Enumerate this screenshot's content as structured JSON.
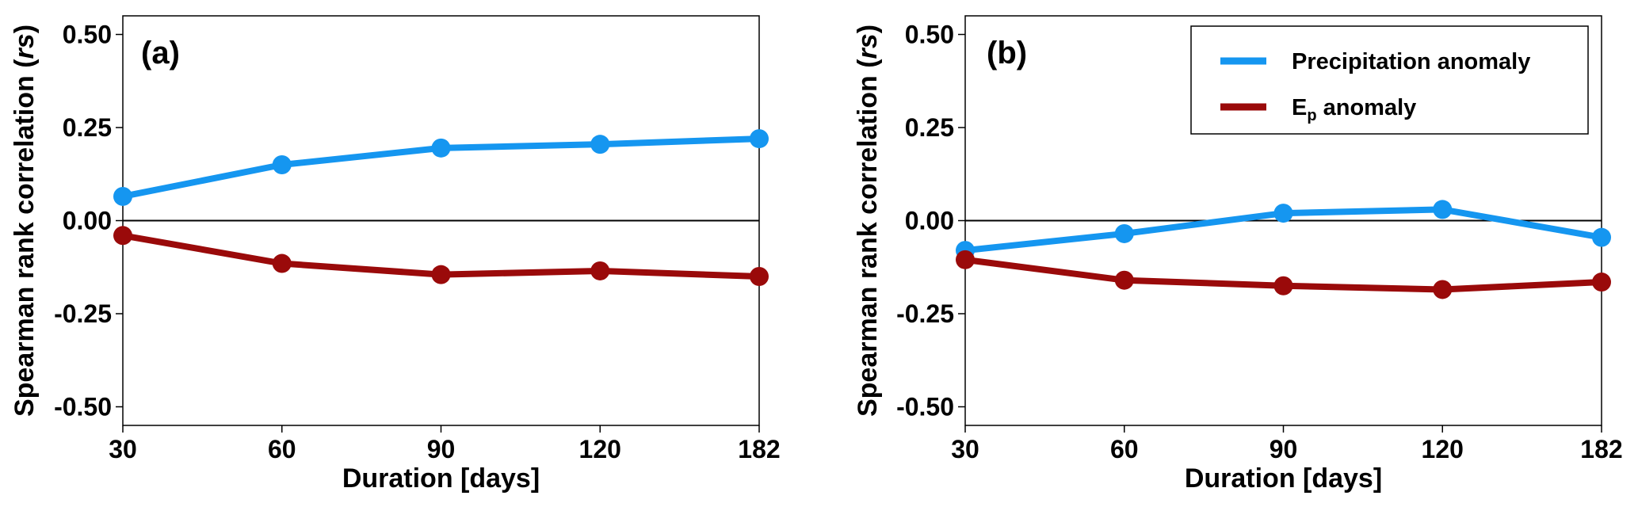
{
  "chart_data": [
    {
      "type": "line",
      "panel_label": "(a)",
      "x": [
        30,
        60,
        90,
        120,
        182
      ],
      "x_ticks": [
        "30",
        "60",
        "90",
        "120",
        "182"
      ],
      "xlabel": "Duration [days]",
      "ylabel_main": "Spearman rank correlation (",
      "ylabel_italic": "rs",
      "ylabel_end": ")",
      "ylim": [
        -0.55,
        0.55
      ],
      "y_ticks": [
        "0.50",
        "0.25",
        "0.00",
        "-0.25",
        "-0.50"
      ],
      "y_tick_values": [
        0.5,
        0.25,
        0.0,
        -0.25,
        -0.5
      ],
      "zero_line": true,
      "series": [
        {
          "color": "#1596F0",
          "values": [
            0.065,
            0.15,
            0.195,
            0.205,
            0.22
          ]
        },
        {
          "color": "#9A0A0A",
          "values": [
            -0.04,
            -0.115,
            -0.145,
            -0.135,
            -0.15
          ]
        }
      ]
    },
    {
      "type": "line",
      "panel_label": "(b)",
      "x": [
        30,
        60,
        90,
        120,
        182
      ],
      "x_ticks": [
        "30",
        "60",
        "90",
        "120",
        "182"
      ],
      "xlabel": "Duration [days]",
      "ylabel_main": "Spearman rank correlation (",
      "ylabel_italic": "rs",
      "ylabel_end": ")",
      "ylim": [
        -0.55,
        0.55
      ],
      "y_ticks": [
        "0.50",
        "0.25",
        "0.00",
        "-0.25",
        "-0.50"
      ],
      "y_tick_values": [
        0.5,
        0.25,
        0.0,
        -0.25,
        -0.5
      ],
      "zero_line": true,
      "legend": {
        "placement": "top-right",
        "entries": [
          {
            "label": "Precipitation anomaly",
            "color": "#1596F0"
          },
          {
            "label_main": "E",
            "label_sub": "p",
            "label_rest": " anomaly",
            "color": "#9A0A0A"
          }
        ]
      },
      "series": [
        {
          "color": "#1596F0",
          "values": [
            -0.08,
            -0.035,
            0.02,
            0.03,
            -0.045
          ]
        },
        {
          "color": "#9A0A0A",
          "values": [
            -0.105,
            -0.16,
            -0.175,
            -0.185,
            -0.165
          ]
        }
      ]
    }
  ]
}
